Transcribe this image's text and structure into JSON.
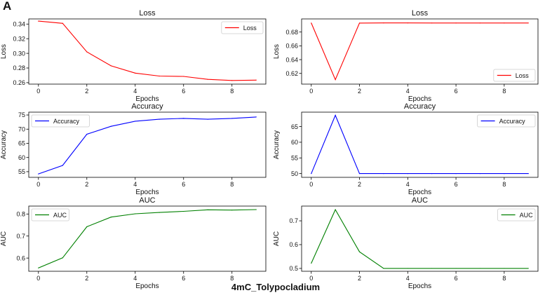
{
  "figure": {
    "panel_letter": "A",
    "caption": "4mC_Tolypocladium"
  },
  "chart_data": [
    {
      "type": "line",
      "title": "Loss",
      "xlabel": "Epochs",
      "ylabel": "Loss",
      "xlim": [
        -0.4,
        9.4
      ],
      "ylim": [
        0.258,
        0.347
      ],
      "xticks": [
        0,
        2,
        4,
        6,
        8
      ],
      "yticks": [
        0.26,
        0.28,
        0.3,
        0.32,
        0.34
      ],
      "ytick_labels": [
        "0.26",
        "0.28",
        "0.30",
        "0.32",
        "0.34"
      ],
      "legend_position": "upper-right",
      "series": [
        {
          "name": "Loss",
          "color": "#ff0000",
          "x": [
            0,
            1,
            2,
            3,
            4,
            5,
            6,
            7,
            8,
            9
          ],
          "y": [
            0.344,
            0.341,
            0.302,
            0.283,
            0.273,
            0.269,
            0.2685,
            0.2645,
            0.263,
            0.2635
          ]
        }
      ]
    },
    {
      "type": "line",
      "title": "Loss",
      "xlabel": "Epochs",
      "ylabel": "Loss",
      "xlim": [
        -0.4,
        9.4
      ],
      "ylim": [
        0.6045,
        0.699
      ],
      "xticks": [
        0,
        2,
        4,
        6,
        8
      ],
      "yticks": [
        0.62,
        0.64,
        0.66,
        0.68
      ],
      "ytick_labels": [
        "0.62",
        "0.64",
        "0.66",
        "0.68"
      ],
      "legend_position": "lower-right",
      "series": [
        {
          "name": "Loss",
          "color": "#ff0000",
          "x": [
            0,
            1,
            2,
            3,
            4,
            5,
            6,
            7,
            8,
            9
          ],
          "y": [
            0.693,
            0.611,
            0.693,
            0.6932,
            0.6932,
            0.6931,
            0.6931,
            0.6931,
            0.6931,
            0.6931
          ]
        }
      ]
    },
    {
      "type": "line",
      "title": "Accuracy",
      "xlabel": "Epochs",
      "ylabel": "Accuracy",
      "xlim": [
        -0.4,
        9.4
      ],
      "ylim": [
        53,
        76
      ],
      "xticks": [
        0,
        2,
        4,
        6,
        8
      ],
      "yticks": [
        55,
        60,
        65,
        70,
        75
      ],
      "ytick_labels": [
        "55",
        "60",
        "65",
        "70",
        "75"
      ],
      "legend_position": "upper-left",
      "series": [
        {
          "name": "Accuracy",
          "color": "#0000ff",
          "x": [
            0,
            1,
            2,
            3,
            4,
            5,
            6,
            7,
            8,
            9
          ],
          "y": [
            54.2,
            57.2,
            68.2,
            71.0,
            72.8,
            73.5,
            73.8,
            73.5,
            73.8,
            74.3
          ]
        }
      ]
    },
    {
      "type": "line",
      "title": "Accuracy",
      "xlabel": "Epochs",
      "ylabel": "Accuracy",
      "xlim": [
        -0.4,
        9.4
      ],
      "ylim": [
        48.8,
        69.6
      ],
      "xticks": [
        0,
        2,
        4,
        6,
        8
      ],
      "yticks": [
        50,
        55,
        60,
        65
      ],
      "ytick_labels": [
        "50",
        "55",
        "60",
        "65"
      ],
      "legend_position": "upper-right",
      "series": [
        {
          "name": "Accuracy",
          "color": "#0000ff",
          "x": [
            0,
            1,
            2,
            3,
            4,
            5,
            6,
            7,
            8,
            9
          ],
          "y": [
            50.0,
            68.6,
            50.0,
            50.0,
            50.0,
            50.0,
            50.0,
            50.0,
            50.0,
            50.0
          ]
        }
      ]
    },
    {
      "type": "line",
      "title": "AUC",
      "xlabel": "Epochs",
      "ylabel": "AUC",
      "xlim": [
        -0.4,
        9.4
      ],
      "ylim": [
        0.54,
        0.836
      ],
      "xticks": [
        0,
        2,
        4,
        6,
        8
      ],
      "yticks": [
        0.6,
        0.7,
        0.8
      ],
      "ytick_labels": [
        "0.6",
        "0.7",
        "0.8"
      ],
      "legend_position": "upper-left",
      "series": [
        {
          "name": "AUC",
          "color": "#008000",
          "x": [
            0,
            1,
            2,
            3,
            4,
            5,
            6,
            7,
            8,
            9
          ],
          "y": [
            0.555,
            0.601,
            0.742,
            0.786,
            0.801,
            0.807,
            0.812,
            0.819,
            0.818,
            0.82
          ]
        }
      ]
    },
    {
      "type": "line",
      "title": "AUC",
      "xlabel": "Epochs",
      "ylabel": "AUC",
      "xlim": [
        -0.4,
        9.4
      ],
      "ylim": [
        0.488,
        0.762
      ],
      "xticks": [
        0,
        2,
        4,
        6,
        8
      ],
      "yticks": [
        0.5,
        0.6,
        0.7
      ],
      "ytick_labels": [
        "0.5",
        "0.6",
        "0.7"
      ],
      "legend_position": "upper-right",
      "series": [
        {
          "name": "AUC",
          "color": "#008000",
          "x": [
            0,
            1,
            2,
            3,
            4,
            5,
            6,
            7,
            8,
            9
          ],
          "y": [
            0.522,
            0.747,
            0.57,
            0.5,
            0.5,
            0.5,
            0.5,
            0.5,
            0.5,
            0.5
          ]
        }
      ]
    }
  ]
}
